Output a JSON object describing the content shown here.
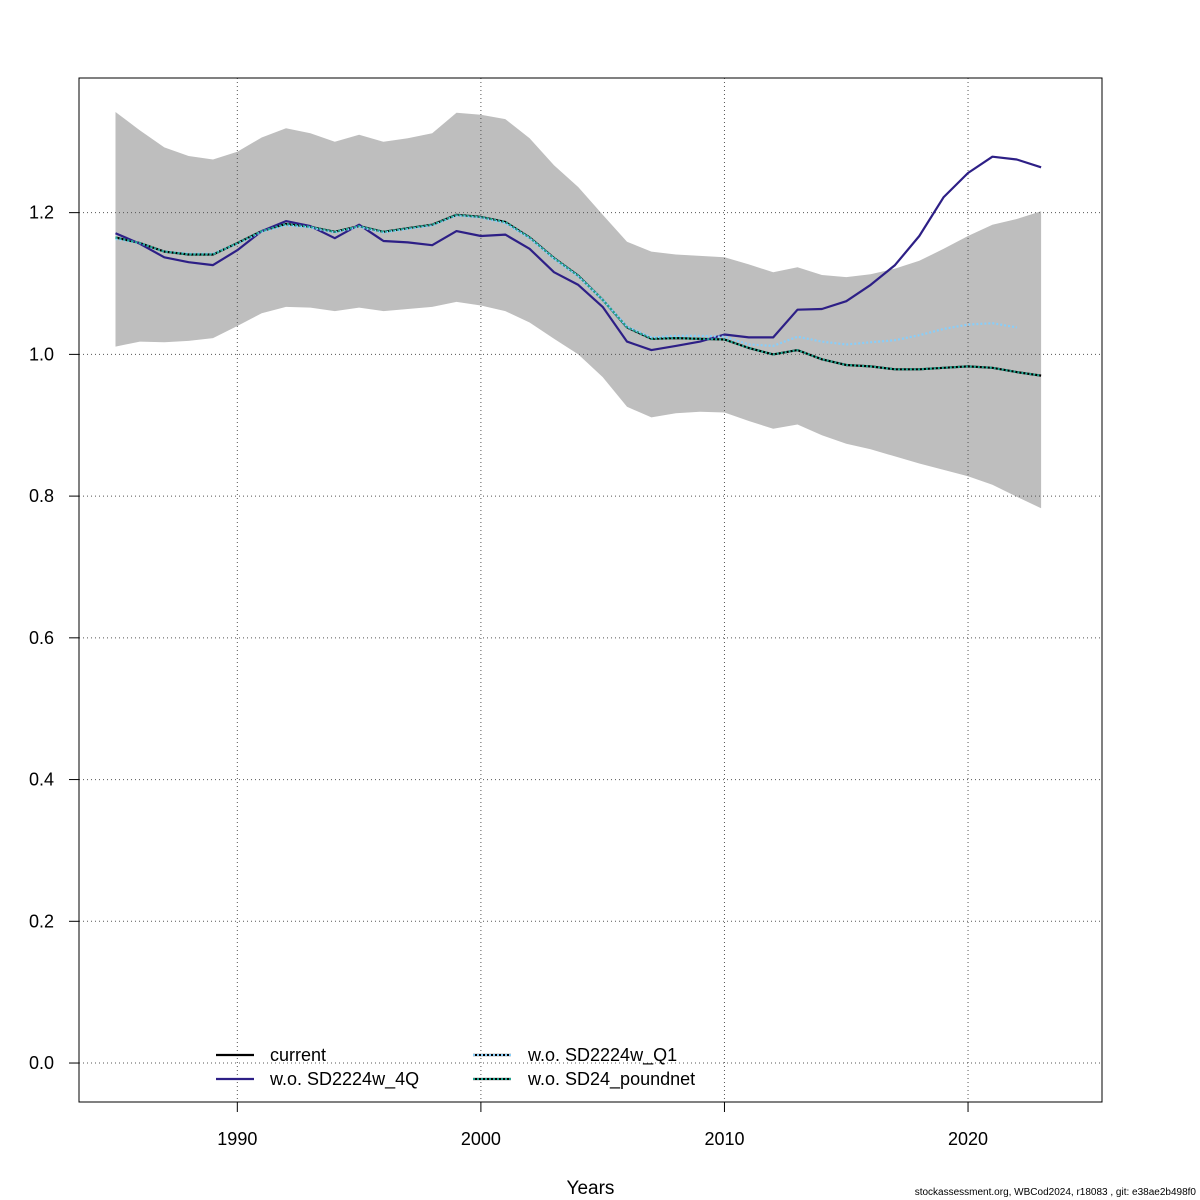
{
  "chart_data": {
    "type": "line",
    "xlabel": "Years",
    "ylabel": "",
    "xlim": [
      1983.5,
      2025.5
    ],
    "ylim": [
      -0.055,
      1.39
    ],
    "x_ticks": [
      1990,
      2000,
      2010,
      2020
    ],
    "y_ticks": [
      0.0,
      0.2,
      0.4,
      0.6,
      0.8,
      1.0,
      1.2
    ],
    "y_tick_labels": [
      "0.0",
      "0.2",
      "0.4",
      "0.6",
      "0.8",
      "1.0",
      "1.2"
    ],
    "grid": true,
    "legend_position": "bottom-left",
    "band": {
      "color": "#bebebe",
      "x": [
        1985,
        1986,
        1987,
        1988,
        1989,
        1990,
        1991,
        1992,
        1993,
        1994,
        1995,
        1996,
        1997,
        1998,
        1999,
        2000,
        2001,
        2002,
        2003,
        2004,
        2005,
        2006,
        2007,
        2008,
        2009,
        2010,
        2011,
        2012,
        2013,
        2014,
        2015,
        2016,
        2017,
        2018,
        2019,
        2020,
        2021,
        2022,
        2023
      ],
      "upper": [
        1.342,
        1.316,
        1.292,
        1.28,
        1.275,
        1.286,
        1.306,
        1.319,
        1.312,
        1.3,
        1.31,
        1.3,
        1.305,
        1.312,
        1.341,
        1.338,
        1.332,
        1.305,
        1.267,
        1.236,
        1.197,
        1.159,
        1.145,
        1.141,
        1.139,
        1.137,
        1.127,
        1.116,
        1.123,
        1.112,
        1.109,
        1.113,
        1.121,
        1.132,
        1.149,
        1.167,
        1.183,
        1.191,
        1.202
      ],
      "lower": [
        1.011,
        1.018,
        1.017,
        1.019,
        1.023,
        1.04,
        1.058,
        1.067,
        1.066,
        1.061,
        1.066,
        1.061,
        1.064,
        1.067,
        1.074,
        1.069,
        1.061,
        1.045,
        1.022,
        1.0,
        0.968,
        0.926,
        0.911,
        0.917,
        0.919,
        0.918,
        0.906,
        0.895,
        0.901,
        0.886,
        0.874,
        0.866,
        0.856,
        0.846,
        0.837,
        0.828,
        0.816,
        0.799,
        0.783
      ]
    },
    "series": [
      {
        "name": "current",
        "color": "#000000",
        "dash": "solid",
        "x": [
          1985,
          1986,
          1987,
          1988,
          1989,
          1990,
          1991,
          1992,
          1993,
          1994,
          1995,
          1996,
          1997,
          1998,
          1999,
          2000,
          2001,
          2002,
          2003,
          2004,
          2005,
          2006,
          2007,
          2008,
          2009,
          2010,
          2011,
          2012,
          2013,
          2014,
          2015,
          2016,
          2017,
          2018,
          2019,
          2020,
          2021,
          2022,
          2023
        ],
        "values": [
          1.165,
          1.157,
          1.145,
          1.141,
          1.141,
          1.157,
          1.174,
          1.184,
          1.18,
          1.173,
          1.181,
          1.173,
          1.178,
          1.183,
          1.197,
          1.194,
          1.187,
          1.165,
          1.136,
          1.111,
          1.077,
          1.038,
          1.022,
          1.023,
          1.022,
          1.021,
          1.009,
          1.0,
          1.006,
          0.993,
          0.985,
          0.983,
          0.979,
          0.979,
          0.981,
          0.983,
          0.981,
          0.975,
          0.97
        ]
      },
      {
        "name": "w.o. SD2224w_4Q",
        "color": "#2d1f86",
        "dash": "solid",
        "x": [
          1985,
          1986,
          1987,
          1988,
          1989,
          1990,
          1991,
          1992,
          1993,
          1994,
          1995,
          1996,
          1997,
          1998,
          1999,
          2000,
          2001,
          2002,
          2003,
          2004,
          2005,
          2006,
          2007,
          2008,
          2009,
          2010,
          2011,
          2012,
          2013,
          2014,
          2015,
          2016,
          2017,
          2018,
          2019,
          2020,
          2021,
          2022,
          2023
        ],
        "values": [
          1.171,
          1.156,
          1.137,
          1.13,
          1.126,
          1.147,
          1.174,
          1.188,
          1.181,
          1.164,
          1.183,
          1.16,
          1.158,
          1.154,
          1.174,
          1.167,
          1.169,
          1.149,
          1.116,
          1.098,
          1.067,
          1.018,
          1.006,
          1.012,
          1.018,
          1.028,
          1.024,
          1.024,
          1.063,
          1.064,
          1.075,
          1.098,
          1.126,
          1.167,
          1.222,
          1.256,
          1.279,
          1.275,
          1.264
        ]
      },
      {
        "name": "w.o. SD2224w_Q1",
        "color": "#87cefa",
        "dash": "dotted",
        "x": [
          1985,
          1986,
          1987,
          1988,
          1989,
          1990,
          1991,
          1992,
          1993,
          1994,
          1995,
          1996,
          1997,
          1998,
          1999,
          2000,
          2001,
          2002,
          2003,
          2004,
          2005,
          2006,
          2007,
          2008,
          2009,
          2010,
          2011,
          2012,
          2013,
          2014,
          2015,
          2016,
          2017,
          2018,
          2019,
          2020,
          2021,
          2022
        ],
        "values": [
          1.163,
          1.157,
          1.145,
          1.142,
          1.142,
          1.156,
          1.173,
          1.182,
          1.179,
          1.172,
          1.18,
          1.172,
          1.177,
          1.182,
          1.196,
          1.193,
          1.185,
          1.164,
          1.135,
          1.11,
          1.077,
          1.039,
          1.024,
          1.026,
          1.026,
          1.025,
          1.014,
          1.012,
          1.025,
          1.018,
          1.014,
          1.017,
          1.02,
          1.027,
          1.036,
          1.042,
          1.044,
          1.038
        ]
      },
      {
        "name": "w.o. SD24_poundnet",
        "color": "#20a58f",
        "dash": "dotted",
        "x": [
          1985,
          1986,
          1987,
          1988,
          1989,
          1990,
          1991,
          1992,
          1993,
          1994,
          1995,
          1996,
          1997,
          1998,
          1999,
          2000,
          2001,
          2002,
          2003,
          2004,
          2005,
          2006,
          2007,
          2008,
          2009,
          2010,
          2011,
          2012,
          2013,
          2014,
          2015,
          2016,
          2017,
          2018,
          2019,
          2020,
          2021,
          2022,
          2023
        ],
        "values": [
          1.165,
          1.157,
          1.145,
          1.141,
          1.141,
          1.157,
          1.174,
          1.184,
          1.18,
          1.173,
          1.181,
          1.173,
          1.178,
          1.183,
          1.197,
          1.194,
          1.187,
          1.165,
          1.136,
          1.111,
          1.077,
          1.038,
          1.022,
          1.023,
          1.022,
          1.021,
          1.009,
          1.0,
          1.006,
          0.993,
          0.985,
          0.983,
          0.979,
          0.979,
          0.981,
          0.983,
          0.981,
          0.975,
          0.97
        ]
      }
    ],
    "legend": [
      {
        "label": "current",
        "color": "#000000",
        "dash": "solid",
        "overlay": ""
      },
      {
        "label": "w.o. SD2224w_4Q",
        "color": "#2d1f86",
        "dash": "solid",
        "overlay": ""
      },
      {
        "label": "w.o. SD2224w_Q1",
        "color": "#000000",
        "dash": "solid",
        "overlay": "#87cefa"
      },
      {
        "label": "w.o. SD24_poundnet",
        "color": "#000000",
        "dash": "solid",
        "overlay": "#20a58f"
      }
    ]
  },
  "footnote": "stockassessment.org, WBCod2024, r18083 , git: e38ae2b498f0"
}
